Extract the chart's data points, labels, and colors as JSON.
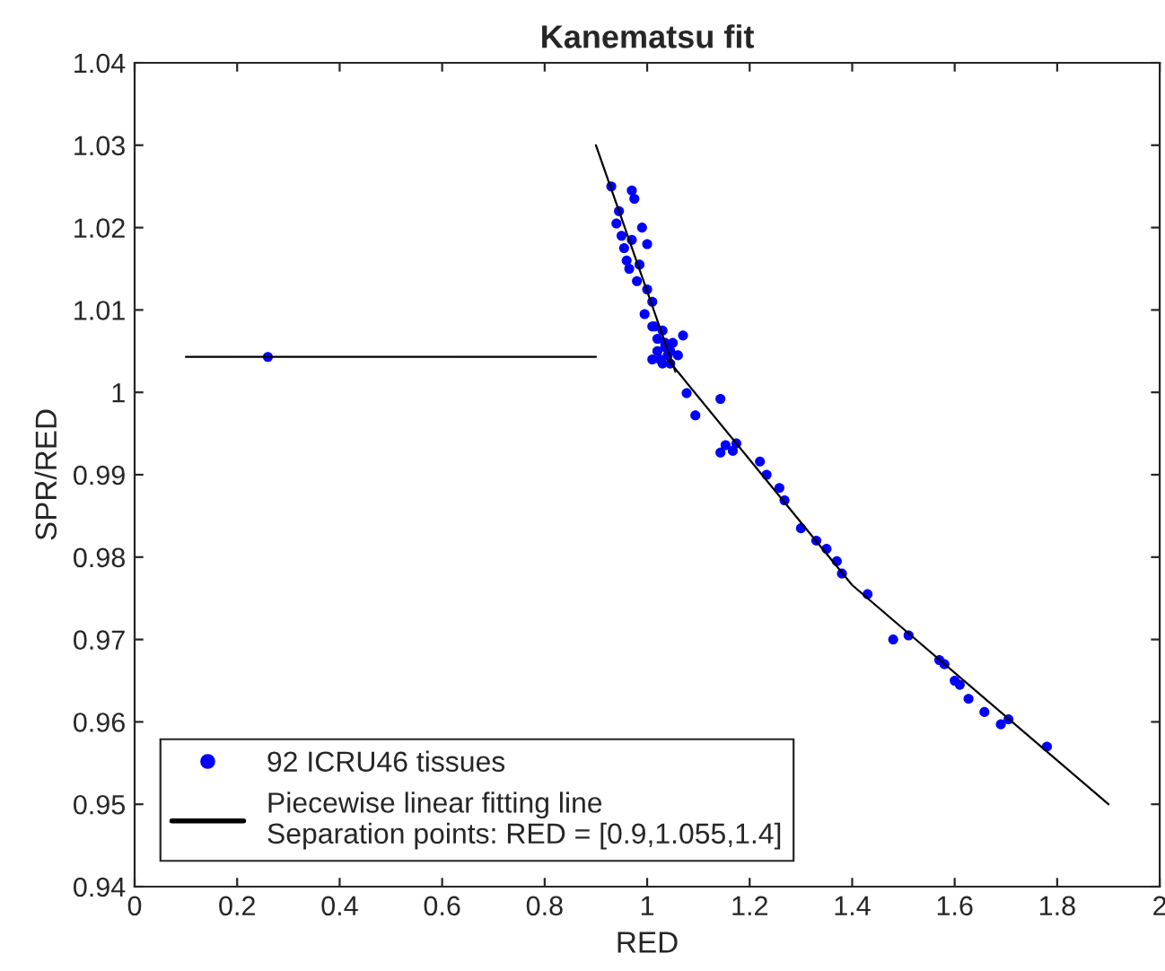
{
  "chart_data": {
    "type": "scatter",
    "title": "Kanematsu fit",
    "xlabel": "RED",
    "ylabel": "SPR/RED",
    "xlim": [
      0,
      2
    ],
    "xticks": [
      0,
      0.2,
      0.4,
      0.6,
      0.8,
      1,
      1.2,
      1.4,
      1.6,
      1.8,
      2
    ],
    "ylim": [
      0.94,
      1.04
    ],
    "yticks": [
      0.94,
      0.95,
      0.96,
      0.97,
      0.98,
      0.99,
      1,
      1.01,
      1.02,
      1.03,
      1.04
    ],
    "grid": false,
    "legend": "bottom left",
    "series": [
      {
        "name": "92 ICRU46 tissues",
        "marker": "circle",
        "color": "#0000ff",
        "x": [
          0.26,
          0.93,
          0.94,
          0.945,
          0.95,
          0.955,
          0.96,
          0.965,
          0.97,
          0.975,
          0.97,
          0.98,
          0.985,
          0.99,
          1.0,
          1.0,
          0.995,
          1.01,
          1.01,
          1.02,
          1.03,
          1.035,
          1.04,
          1.025,
          1.03,
          1.045,
          1.05,
          1.06,
          1.035,
          1.045,
          1.02,
          1.015,
          1.01,
          1.07,
          1.077,
          1.094,
          1.143,
          1.143,
          1.153,
          1.167,
          1.174,
          1.22,
          1.233,
          1.258,
          1.268,
          1.3,
          1.33,
          1.35,
          1.37,
          1.38,
          1.43,
          1.48,
          1.51,
          1.57,
          1.58,
          1.6,
          1.61,
          1.627,
          1.658,
          1.69,
          1.705,
          1.78
        ],
        "values": [
          1.0043,
          1.025,
          1.0205,
          1.022,
          1.019,
          1.0175,
          1.016,
          1.015,
          1.0245,
          1.0235,
          1.0185,
          1.0135,
          1.0155,
          1.02,
          1.018,
          1.0125,
          1.0095,
          1.011,
          1.008,
          1.0065,
          1.0075,
          1.0055,
          1.0045,
          1.004,
          1.0035,
          1.005,
          1.006,
          1.0045,
          1.006,
          1.0035,
          1.005,
          1.008,
          1.004,
          1.0069,
          0.9999,
          0.9972,
          0.9992,
          0.9927,
          0.9936,
          0.9929,
          0.9938,
          0.9916,
          0.99,
          0.9884,
          0.9869,
          0.9835,
          0.982,
          0.981,
          0.9795,
          0.978,
          0.9755,
          0.97,
          0.9705,
          0.9675,
          0.967,
          0.965,
          0.9645,
          0.9628,
          0.9612,
          0.9597,
          0.9603,
          0.957
        ]
      },
      {
        "name": "Piecewise linear fitting line\nSeparation points: RED = [0.9,1.055,1.4]",
        "type": "line",
        "marker": "none",
        "line_style": "solid",
        "color": "#000000",
        "x": [
          0.1,
          0.9
        ],
        "values": [
          1.0043,
          1.0043
        ]
      },
      {
        "type": "line",
        "marker": "none",
        "line_style": "solid",
        "color": "#000000",
        "x": [
          0.9,
          1.055
        ],
        "values": [
          1.03,
          1.0025
        ]
      },
      {
        "type": "line",
        "marker": "none",
        "line_style": "solid",
        "color": "#000000",
        "x": [
          1.04,
          1.4,
          1.9
        ],
        "values": [
          1.004,
          0.9766,
          0.95
        ]
      }
    ]
  }
}
